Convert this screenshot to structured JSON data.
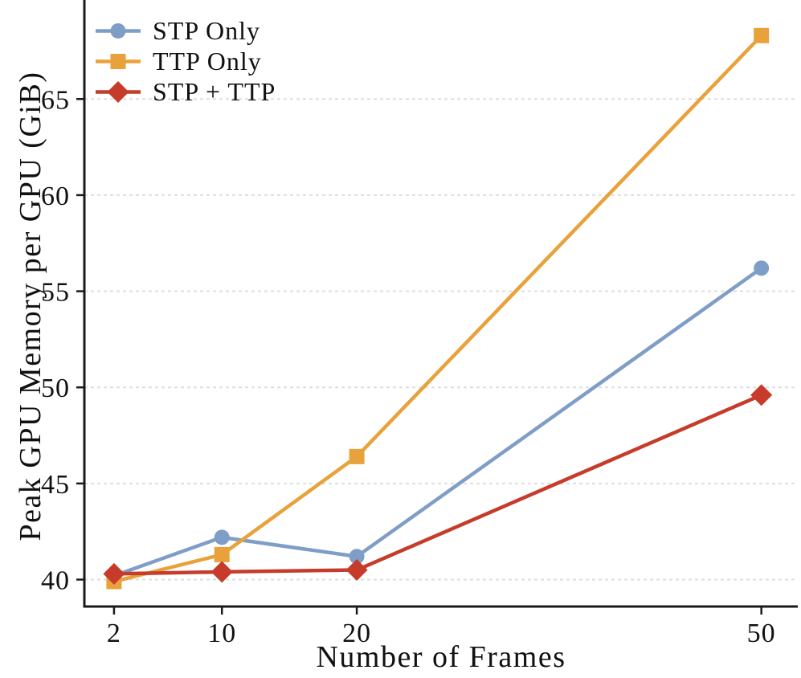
{
  "chart_data": {
    "type": "line",
    "title": "",
    "xlabel": "Number of Frames",
    "ylabel": "Peak GPU Memory per GPU (GiB)",
    "x": [
      2,
      10,
      20,
      50
    ],
    "xtick_labels": [
      "2",
      "10",
      "20",
      "50"
    ],
    "yticks": [
      40,
      45,
      50,
      55,
      60,
      65
    ],
    "xlim": [
      -0.2,
      52.7
    ],
    "ylim": [
      38.6,
      69.9
    ],
    "grid": "horizontal-dashed",
    "legend_position": "upper-left",
    "series": [
      {
        "name": "STP Only",
        "marker": "circle",
        "color": "#7f9ec7",
        "values": [
          40.2,
          42.2,
          41.2,
          56.2
        ]
      },
      {
        "name": "TTP Only",
        "marker": "square",
        "color": "#e9a23b",
        "values": [
          39.9,
          41.3,
          46.4,
          68.3
        ]
      },
      {
        "name": "STP + TTP",
        "marker": "diamond",
        "color": "#c63b2a",
        "values": [
          40.3,
          40.4,
          40.5,
          49.6
        ]
      }
    ],
    "colors": {
      "background": "#ffffff",
      "text": "#111111",
      "grid": "#dedede",
      "spine": "#1a1a1a"
    }
  }
}
